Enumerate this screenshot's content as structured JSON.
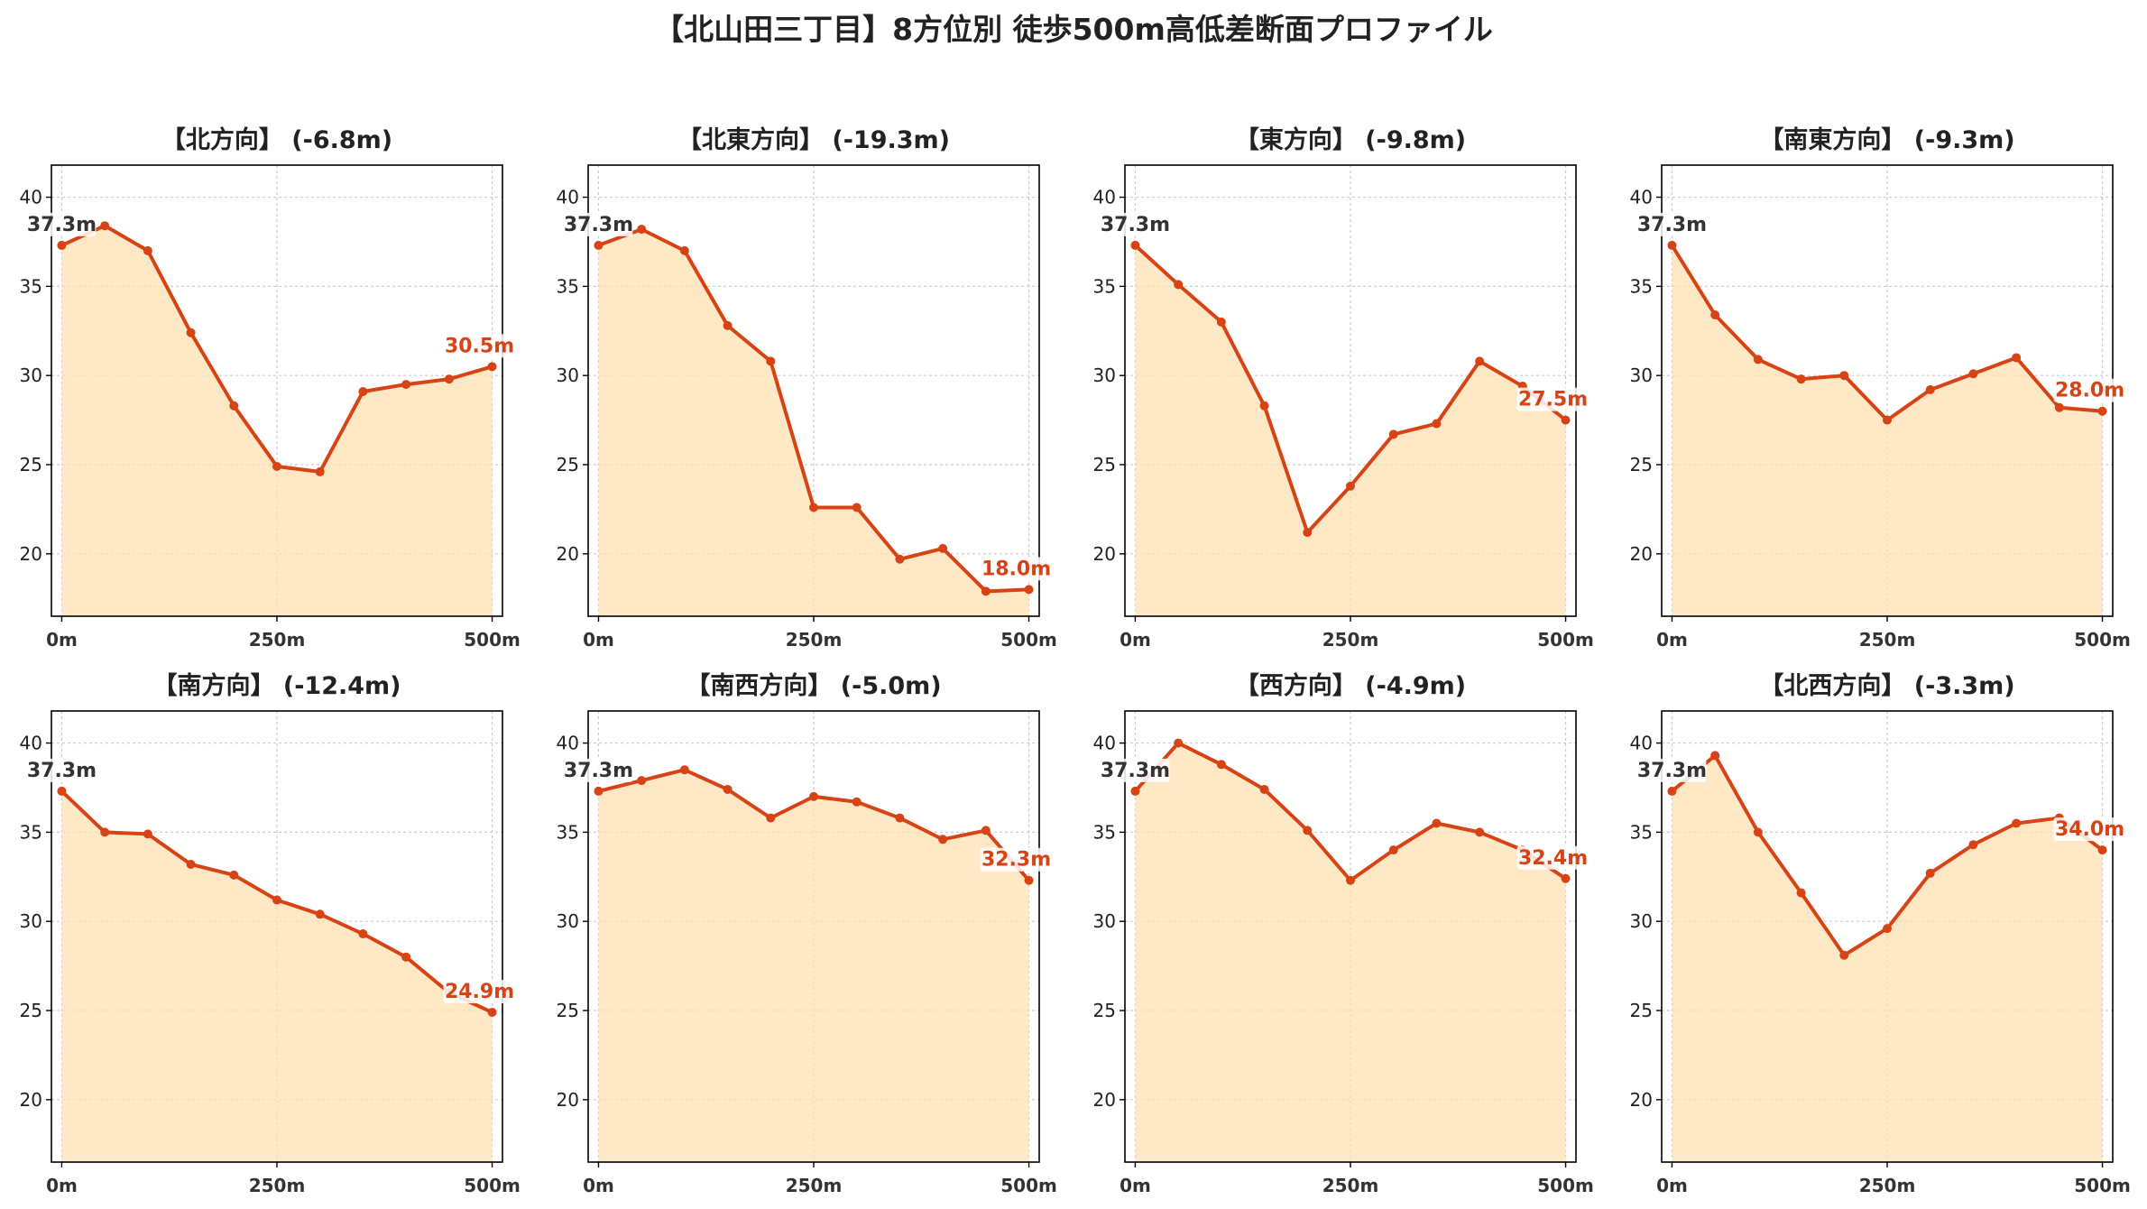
{
  "title": "【北山田三丁目】8方位別 徒歩500m高低差断面プロファイル",
  "colors": {
    "line": "#d84315",
    "fill": "#ffe0b2",
    "start_label": "#333333",
    "end_label": "#d84315",
    "grid": "#cccccc"
  },
  "chart_data": [
    {
      "type": "area",
      "title": "【北方向】 (-6.8m)",
      "x": [
        0,
        50,
        100,
        150,
        200,
        250,
        300,
        350,
        400,
        450,
        500
      ],
      "values": [
        37.3,
        38.4,
        37.0,
        32.4,
        28.3,
        24.9,
        24.6,
        29.1,
        29.5,
        29.8,
        30.5
      ],
      "start_label": "37.3m",
      "end_label": "30.5m",
      "x_ticks": [
        "0m",
        "250m",
        "500m"
      ],
      "y_ticks": [
        "20",
        "25",
        "30",
        "35",
        "40"
      ],
      "ylim": [
        16.5,
        41.8
      ],
      "xlim": [
        -12,
        512
      ],
      "grid": true
    },
    {
      "type": "area",
      "title": "【北東方向】 (-19.3m)",
      "x": [
        0,
        50,
        100,
        150,
        200,
        250,
        300,
        350,
        400,
        450,
        500
      ],
      "values": [
        37.3,
        38.2,
        37.0,
        32.8,
        30.8,
        22.6,
        22.6,
        19.7,
        20.3,
        17.9,
        18.0
      ],
      "start_label": "37.3m",
      "end_label": "18.0m",
      "x_ticks": [
        "0m",
        "250m",
        "500m"
      ],
      "y_ticks": [
        "20",
        "25",
        "30",
        "35",
        "40"
      ],
      "ylim": [
        16.5,
        41.8
      ],
      "xlim": [
        -12,
        512
      ],
      "grid": true
    },
    {
      "type": "area",
      "title": "【東方向】 (-9.8m)",
      "x": [
        0,
        50,
        100,
        150,
        200,
        250,
        300,
        350,
        400,
        450,
        500
      ],
      "values": [
        37.3,
        35.1,
        33.0,
        28.3,
        21.2,
        23.8,
        26.7,
        27.3,
        30.8,
        29.4,
        27.5
      ],
      "start_label": "37.3m",
      "end_label": "27.5m",
      "x_ticks": [
        "0m",
        "250m",
        "500m"
      ],
      "y_ticks": [
        "20",
        "25",
        "30",
        "35",
        "40"
      ],
      "ylim": [
        16.5,
        41.8
      ],
      "xlim": [
        -12,
        512
      ],
      "grid": true
    },
    {
      "type": "area",
      "title": "【南東方向】 (-9.3m)",
      "x": [
        0,
        50,
        100,
        150,
        200,
        250,
        300,
        350,
        400,
        450,
        500
      ],
      "values": [
        37.3,
        33.4,
        30.9,
        29.8,
        30.0,
        27.5,
        29.2,
        30.1,
        31.0,
        28.2,
        28.0
      ],
      "start_label": "37.3m",
      "end_label": "28.0m",
      "x_ticks": [
        "0m",
        "250m",
        "500m"
      ],
      "y_ticks": [
        "20",
        "25",
        "30",
        "35",
        "40"
      ],
      "ylim": [
        16.5,
        41.8
      ],
      "xlim": [
        -12,
        512
      ],
      "grid": true
    },
    {
      "type": "area",
      "title": "【南方向】 (-12.4m)",
      "x": [
        0,
        50,
        100,
        150,
        200,
        250,
        300,
        350,
        400,
        450,
        500
      ],
      "values": [
        37.3,
        35.0,
        34.9,
        33.2,
        32.6,
        31.2,
        30.4,
        29.3,
        28.0,
        26.0,
        24.9
      ],
      "start_label": "37.3m",
      "end_label": "24.9m",
      "x_ticks": [
        "0m",
        "250m",
        "500m"
      ],
      "y_ticks": [
        "20",
        "25",
        "30",
        "35",
        "40"
      ],
      "ylim": [
        16.5,
        41.8
      ],
      "xlim": [
        -12,
        512
      ],
      "grid": true
    },
    {
      "type": "area",
      "title": "【南西方向】 (-5.0m)",
      "x": [
        0,
        50,
        100,
        150,
        200,
        250,
        300,
        350,
        400,
        450,
        500
      ],
      "values": [
        37.3,
        37.9,
        38.5,
        37.4,
        35.8,
        37.0,
        36.7,
        35.8,
        34.6,
        35.1,
        32.3
      ],
      "start_label": "37.3m",
      "end_label": "32.3m",
      "x_ticks": [
        "0m",
        "250m",
        "500m"
      ],
      "y_ticks": [
        "20",
        "25",
        "30",
        "35",
        "40"
      ],
      "ylim": [
        16.5,
        41.8
      ],
      "xlim": [
        -12,
        512
      ],
      "grid": true
    },
    {
      "type": "area",
      "title": "【西方向】 (-4.9m)",
      "x": [
        0,
        50,
        100,
        150,
        200,
        250,
        300,
        350,
        400,
        450,
        500
      ],
      "values": [
        37.3,
        40.0,
        38.8,
        37.4,
        35.1,
        32.3,
        34.0,
        35.5,
        35.0,
        34.0,
        32.4
      ],
      "start_label": "37.3m",
      "end_label": "32.4m",
      "x_ticks": [
        "0m",
        "250m",
        "500m"
      ],
      "y_ticks": [
        "20",
        "25",
        "30",
        "35",
        "40"
      ],
      "ylim": [
        16.5,
        41.8
      ],
      "xlim": [
        -12,
        512
      ],
      "grid": true
    },
    {
      "type": "area",
      "title": "【北西方向】 (-3.3m)",
      "x": [
        0,
        50,
        100,
        150,
        200,
        250,
        300,
        350,
        400,
        450,
        500
      ],
      "values": [
        37.3,
        39.3,
        35.0,
        31.6,
        28.1,
        29.6,
        32.7,
        34.3,
        35.5,
        35.8,
        34.0
      ],
      "start_label": "37.3m",
      "end_label": "34.0m",
      "x_ticks": [
        "0m",
        "250m",
        "500m"
      ],
      "y_ticks": [
        "20",
        "25",
        "30",
        "35",
        "40"
      ],
      "ylim": [
        16.5,
        41.8
      ],
      "xlim": [
        -12,
        512
      ],
      "grid": true
    }
  ]
}
